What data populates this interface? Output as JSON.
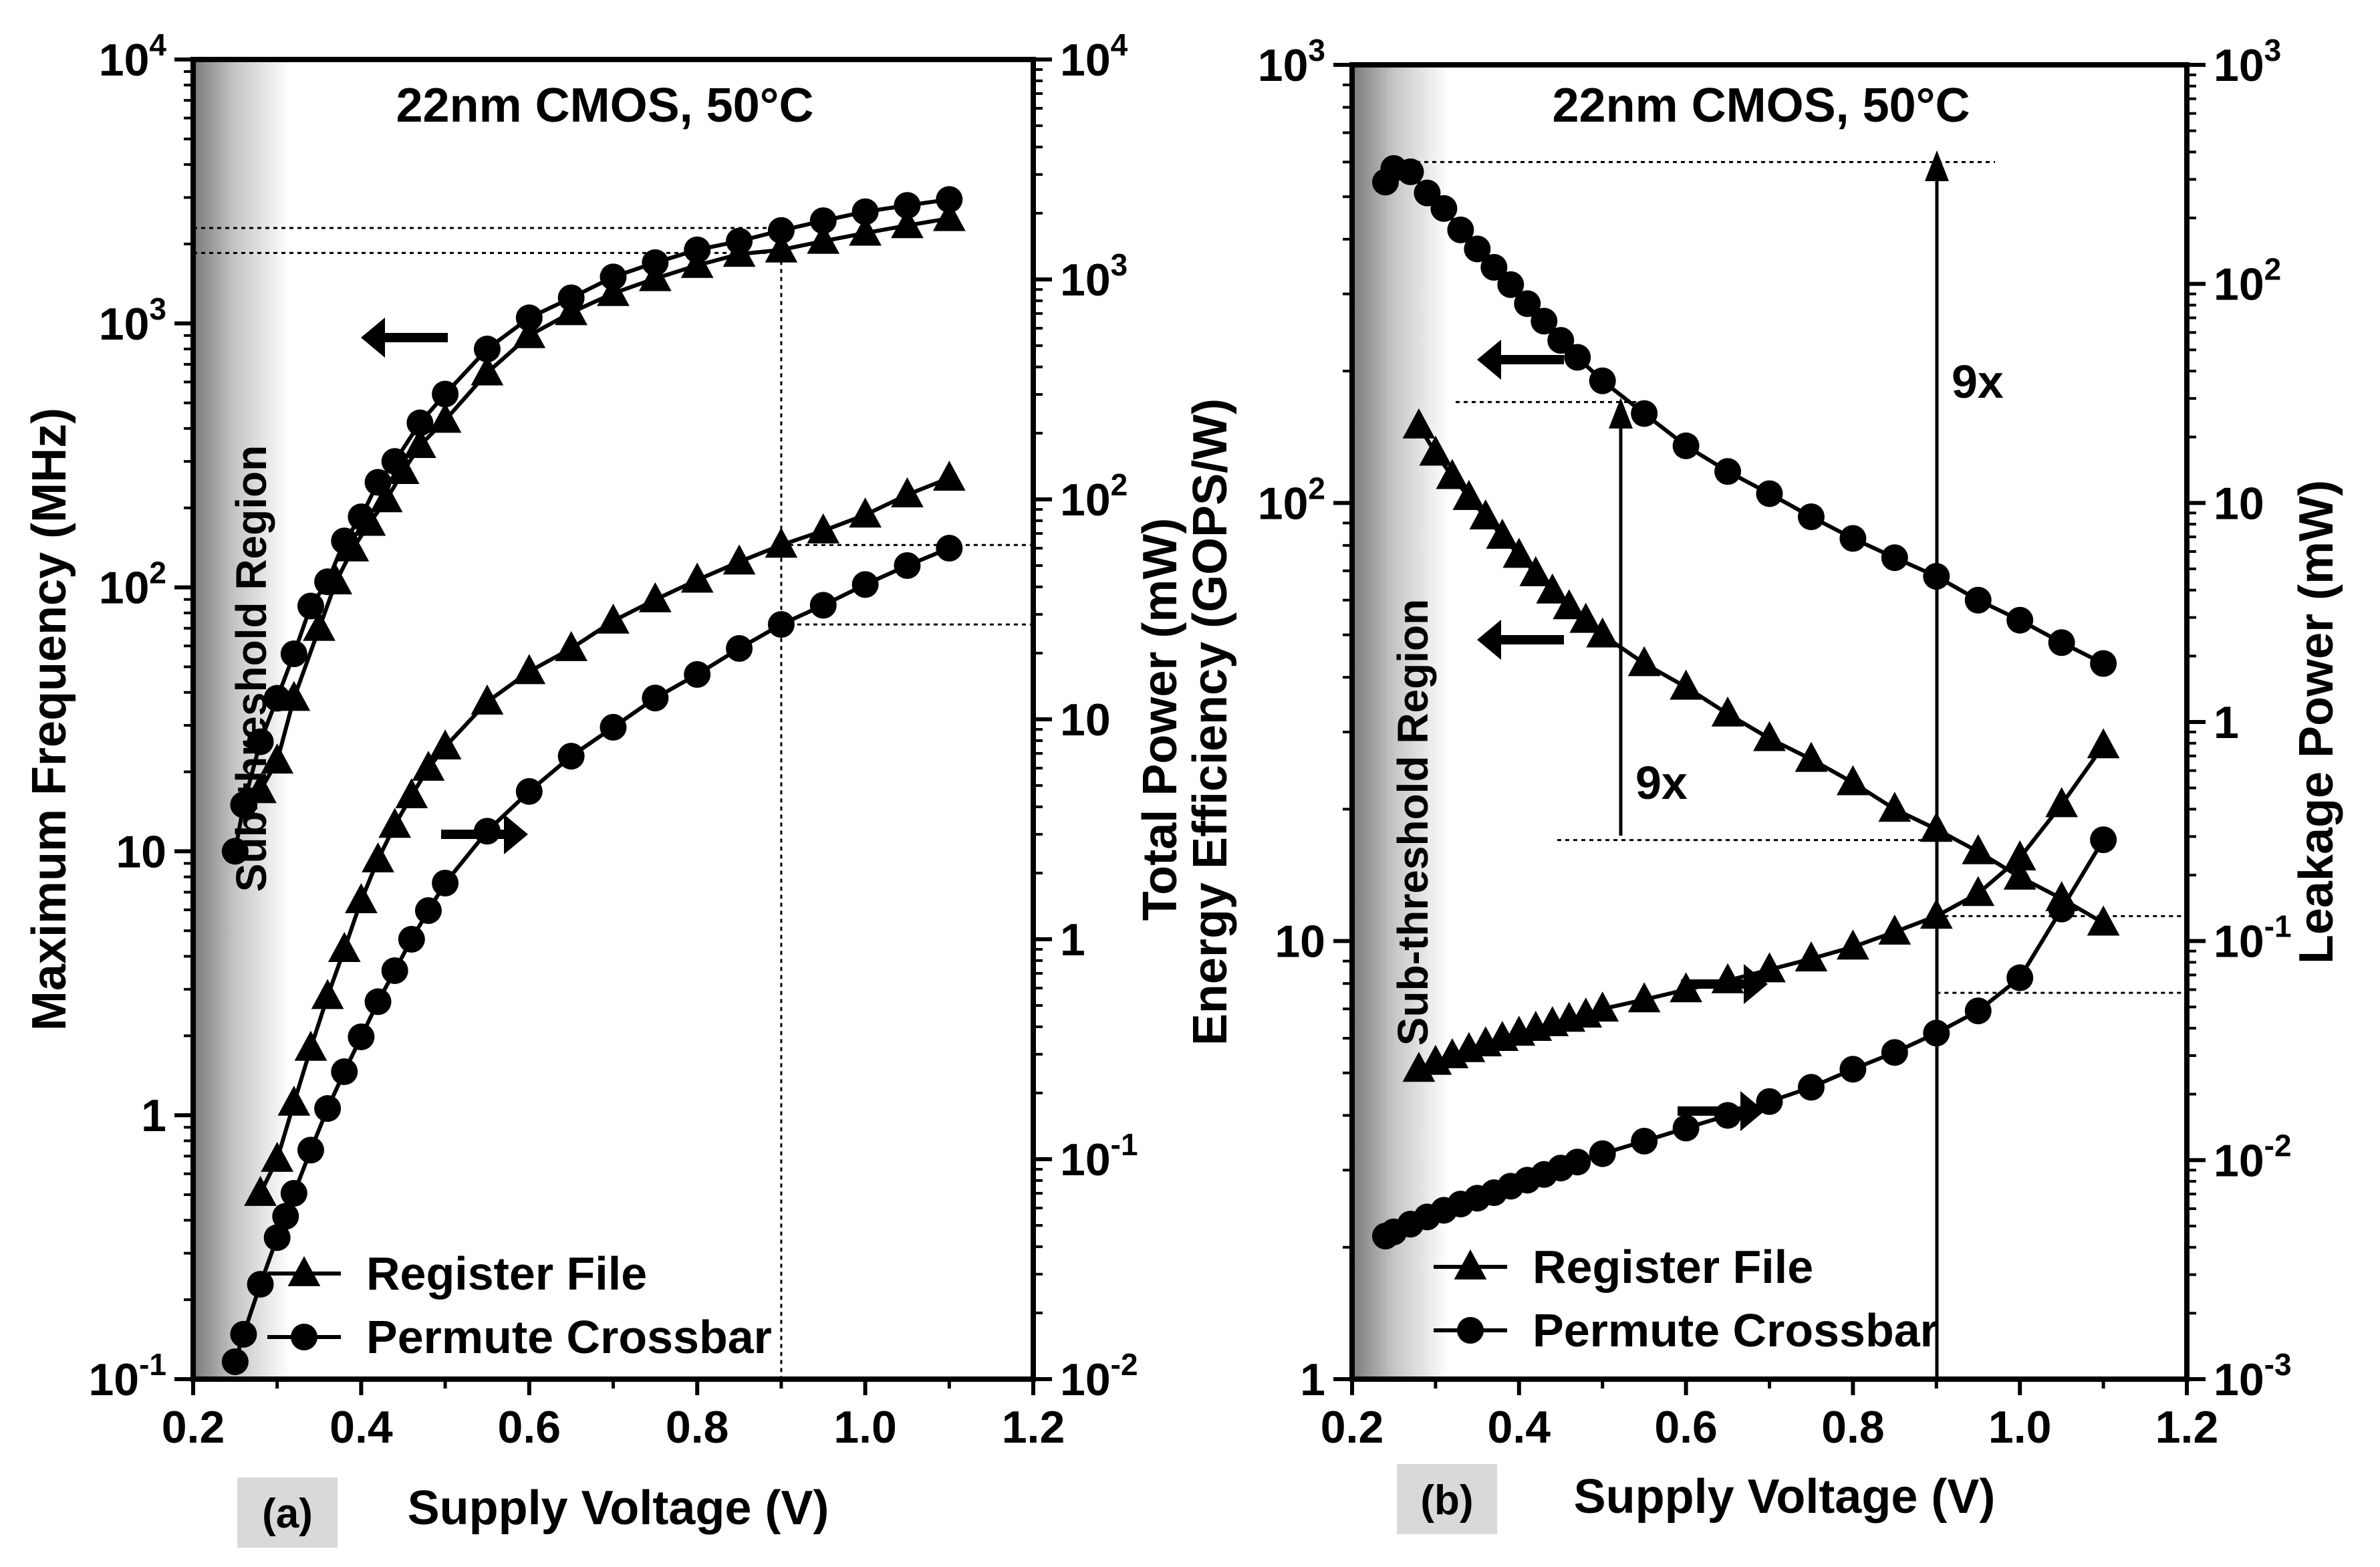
{
  "chart_data": [
    {
      "panel": "(a)",
      "type": "line",
      "title": "22nm CMOS, 50°C",
      "region_label": "Sub-threshold Region",
      "xlabel": "Supply Voltage (V)",
      "ylabel_left": "Maximum Frequency (MHz)",
      "ylabel_right": "Total Power (mW)",
      "xlim": [
        0.2,
        1.2
      ],
      "xticks": [
        "0.2",
        "0.4",
        "0.6",
        "0.8",
        "1.0",
        "1.2"
      ],
      "left_ylim": [
        0.1,
        10000
      ],
      "right_ylim": [
        0.01,
        10000
      ],
      "yscale": "log",
      "left_yticks": [
        {
          "value": 0.1,
          "base": "10",
          "exp": "-1"
        },
        {
          "value": 1,
          "base": "1",
          "exp": ""
        },
        {
          "value": 10,
          "base": "10",
          "exp": ""
        },
        {
          "value": 100,
          "base": "10",
          "exp": "2"
        },
        {
          "value": 1000,
          "base": "10",
          "exp": "3"
        },
        {
          "value": 10000,
          "base": "10",
          "exp": "4"
        }
      ],
      "right_yticks": [
        {
          "value": 0.01,
          "base": "10",
          "exp": "-2"
        },
        {
          "value": 0.1,
          "base": "10",
          "exp": "-1"
        },
        {
          "value": 1,
          "base": "1",
          "exp": ""
        },
        {
          "value": 10,
          "base": "10",
          "exp": ""
        },
        {
          "value": 100,
          "base": "10",
          "exp": "2"
        },
        {
          "value": 1000,
          "base": "10",
          "exp": "3"
        },
        {
          "value": 10000,
          "base": "10",
          "exp": "4"
        }
      ],
      "series": [
        {
          "name": "Register File",
          "marker": "triangle",
          "axis": "left",
          "x": [
            0.28,
            0.3,
            0.32,
            0.35,
            0.37,
            0.39,
            0.41,
            0.43,
            0.45,
            0.47,
            0.5,
            0.55,
            0.6,
            0.65,
            0.7,
            0.75,
            0.8,
            0.85,
            0.9,
            0.95,
            1.0,
            1.05,
            1.1
          ],
          "y": [
            17,
            22,
            38,
            70,
            105,
            140,
            175,
            215,
            275,
            345,
            430,
            650,
            900,
            1100,
            1300,
            1480,
            1660,
            1830,
            1900,
            2050,
            2200,
            2350,
            2500
          ]
        },
        {
          "name": "Permute Crossbar",
          "marker": "circle",
          "axis": "left",
          "x": [
            0.25,
            0.26,
            0.28,
            0.3,
            0.32,
            0.34,
            0.36,
            0.38,
            0.4,
            0.42,
            0.44,
            0.47,
            0.5,
            0.55,
            0.6,
            0.65,
            0.7,
            0.75,
            0.8,
            0.85,
            0.9,
            0.95,
            1.0,
            1.05,
            1.1
          ],
          "y": [
            10,
            15,
            26,
            38,
            56,
            85,
            105,
            150,
            185,
            250,
            300,
            420,
            540,
            800,
            1050,
            1250,
            1500,
            1700,
            1900,
            2050,
            2250,
            2450,
            2650,
            2800,
            2950
          ]
        },
        {
          "name": "Register File",
          "marker": "triangle",
          "axis": "right",
          "x": [
            0.28,
            0.3,
            0.32,
            0.34,
            0.36,
            0.38,
            0.4,
            0.42,
            0.44,
            0.46,
            0.48,
            0.5,
            0.55,
            0.6,
            0.65,
            0.7,
            0.75,
            0.8,
            0.85,
            0.9,
            0.95,
            1.0,
            1.05,
            1.1
          ],
          "y": [
            0.07,
            0.1,
            0.18,
            0.32,
            0.55,
            0.9,
            1.5,
            2.3,
            3.3,
            4.5,
            6,
            7.5,
            12,
            16.5,
            21,
            28,
            35,
            43,
            52,
            62,
            72,
            85,
            105,
            125
          ]
        },
        {
          "name": "Permute Crossbar",
          "marker": "circle",
          "axis": "right",
          "x": [
            0.25,
            0.26,
            0.28,
            0.3,
            0.31,
            0.32,
            0.34,
            0.36,
            0.38,
            0.4,
            0.42,
            0.44,
            0.46,
            0.48,
            0.5,
            0.55,
            0.6,
            0.65,
            0.7,
            0.75,
            0.8,
            0.85,
            0.9,
            0.95,
            1.0,
            1.05,
            1.1
          ],
          "y": [
            0.012,
            0.016,
            0.027,
            0.044,
            0.055,
            0.07,
            0.11,
            0.17,
            0.25,
            0.36,
            0.52,
            0.72,
            1,
            1.35,
            1.8,
            3.1,
            4.7,
            6.8,
            9.2,
            12.5,
            16,
            21,
            27,
            33,
            41,
            50,
            60
          ]
        }
      ],
      "annotations": {
        "vline_x": 0.9,
        "left_hlines": [
          1850,
          2300
        ],
        "right_hlines": [
          62,
          27
        ]
      },
      "legend": {
        "position": "bottom-right",
        "entries": [
          "Register File",
          "Permute Crossbar"
        ]
      }
    },
    {
      "panel": "(b)",
      "type": "line",
      "title": "22nm CMOS, 50°C",
      "region_label": "Sub-threshold Region",
      "xlabel": "Supply Voltage (V)",
      "ylabel_left": "Energy Efficiency (GOPS/W)",
      "ylabel_right": "Leakage Power (mW)",
      "xlim": [
        0.2,
        1.2
      ],
      "xticks": [
        "0.2",
        "0.4",
        "0.6",
        "0.8",
        "1.0",
        "1.2"
      ],
      "left_ylim": [
        1,
        1000
      ],
      "right_ylim": [
        0.001,
        1000
      ],
      "yscale": "log",
      "left_yticks": [
        {
          "value": 1,
          "base": "1",
          "exp": ""
        },
        {
          "value": 10,
          "base": "10",
          "exp": ""
        },
        {
          "value": 100,
          "base": "10",
          "exp": "2"
        },
        {
          "value": 1000,
          "base": "10",
          "exp": "3"
        }
      ],
      "right_yticks": [
        {
          "value": 0.001,
          "base": "10",
          "exp": "-3"
        },
        {
          "value": 0.01,
          "base": "10",
          "exp": "-2"
        },
        {
          "value": 0.1,
          "base": "10",
          "exp": "-1"
        },
        {
          "value": 1,
          "base": "1",
          "exp": ""
        },
        {
          "value": 10,
          "base": "10",
          "exp": ""
        },
        {
          "value": 100,
          "base": "10",
          "exp": "2"
        },
        {
          "value": 1000,
          "base": "10",
          "exp": "3"
        }
      ],
      "series": [
        {
          "name": "Permute Crossbar",
          "marker": "circle",
          "axis": "left",
          "x": [
            0.24,
            0.25,
            0.27,
            0.29,
            0.31,
            0.33,
            0.35,
            0.37,
            0.39,
            0.41,
            0.43,
            0.45,
            0.47,
            0.5,
            0.55,
            0.6,
            0.65,
            0.7,
            0.75,
            0.8,
            0.85,
            0.9,
            0.95,
            1.0,
            1.05,
            1.1
          ],
          "y": [
            540,
            580,
            570,
            510,
            470,
            420,
            380,
            345,
            315,
            285,
            260,
            235,
            215,
            190,
            160,
            135,
            118,
            105,
            93,
            83,
            75,
            68,
            60,
            54,
            48,
            43
          ]
        },
        {
          "name": "Register File",
          "marker": "triangle",
          "axis": "left",
          "x": [
            0.28,
            0.3,
            0.32,
            0.34,
            0.36,
            0.38,
            0.4,
            0.42,
            0.44,
            0.46,
            0.48,
            0.5,
            0.55,
            0.6,
            0.65,
            0.7,
            0.75,
            0.8,
            0.85,
            0.9,
            0.95,
            1.0,
            1.05,
            1.1
          ],
          "y": [
            150,
            130,
            115,
            103,
            93,
            84,
            76,
            69,
            63,
            58,
            54,
            50,
            43,
            38,
            33,
            29,
            26,
            23,
            20,
            18,
            16,
            14,
            12.5,
            11
          ]
        },
        {
          "name": "Register File",
          "marker": "triangle",
          "axis": "right",
          "x": [
            0.28,
            0.3,
            0.32,
            0.34,
            0.36,
            0.38,
            0.4,
            0.42,
            0.44,
            0.46,
            0.48,
            0.5,
            0.55,
            0.6,
            0.65,
            0.7,
            0.75,
            0.8,
            0.85,
            0.9,
            0.95,
            1.0,
            1.05,
            1.1
          ],
          "y": [
            0.026,
            0.028,
            0.03,
            0.032,
            0.034,
            0.036,
            0.038,
            0.04,
            0.042,
            0.044,
            0.046,
            0.049,
            0.054,
            0.06,
            0.066,
            0.074,
            0.083,
            0.094,
            0.11,
            0.13,
            0.165,
            0.24,
            0.42,
            0.78
          ]
        },
        {
          "name": "Permute Crossbar",
          "marker": "circle",
          "axis": "right",
          "x": [
            0.24,
            0.25,
            0.27,
            0.29,
            0.31,
            0.33,
            0.35,
            0.37,
            0.39,
            0.41,
            0.43,
            0.45,
            0.47,
            0.5,
            0.55,
            0.6,
            0.65,
            0.7,
            0.75,
            0.8,
            0.85,
            0.9,
            0.95,
            1.0,
            1.05,
            1.1
          ],
          "y": [
            0.0045,
            0.0047,
            0.0051,
            0.0055,
            0.0059,
            0.0063,
            0.0067,
            0.0071,
            0.0076,
            0.0081,
            0.0086,
            0.0092,
            0.0098,
            0.0107,
            0.0122,
            0.014,
            0.016,
            0.0185,
            0.0215,
            0.026,
            0.031,
            0.038,
            0.048,
            0.068,
            0.14,
            0.29
          ]
        }
      ],
      "annotations": {
        "vline_x": 0.9,
        "left_hlines": [
          600,
          170,
          17
        ],
        "right_hlines": [
          0.13,
          0.058
        ],
        "ratio_label": "9x"
      },
      "legend": {
        "position": "bottom-left",
        "entries": [
          "Register File",
          "Permute Crossbar"
        ]
      }
    }
  ]
}
